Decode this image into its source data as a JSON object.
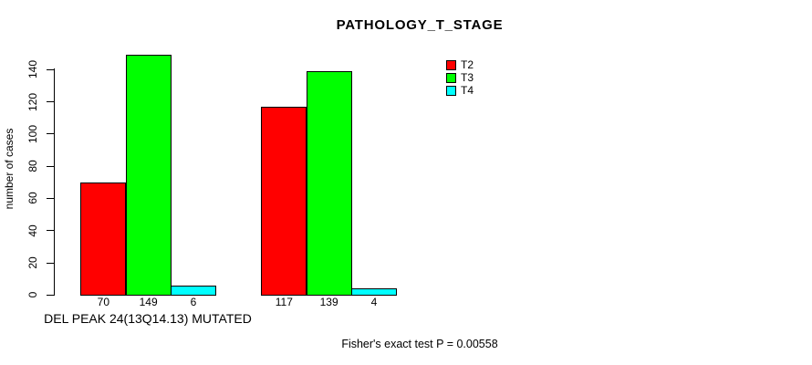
{
  "chart_data": {
    "type": "bar",
    "title": "PATHOLOGY_T_STAGE",
    "ylabel": "number of cases",
    "xlabel": "",
    "ylim": [
      0,
      140
    ],
    "yticks": [
      0,
      20,
      40,
      60,
      80,
      100,
      120,
      140
    ],
    "grid": false,
    "legend_position": "top-right-inside",
    "series_names": [
      "T2",
      "T3",
      "T4"
    ],
    "legend": [
      {
        "label": "T2",
        "color": "#ff0000"
      },
      {
        "label": "T3",
        "color": "#00ff00"
      },
      {
        "label": "T4",
        "color": "#00ffff"
      }
    ],
    "groups": [
      {
        "label": "DEL PEAK 24(13Q14.13) MUTATED",
        "values": [
          70,
          149,
          6
        ],
        "value_labels": [
          "70",
          "149",
          "6"
        ]
      },
      {
        "label": "",
        "values": [
          117,
          139,
          4
        ],
        "value_labels": [
          "117",
          "139",
          "4"
        ]
      }
    ],
    "bar_colors": [
      "#ff0000",
      "#00ff00",
      "#00ffff"
    ],
    "bar_border_color": "#000000",
    "annotation": "Fisher's exact test P = 0.00558"
  }
}
